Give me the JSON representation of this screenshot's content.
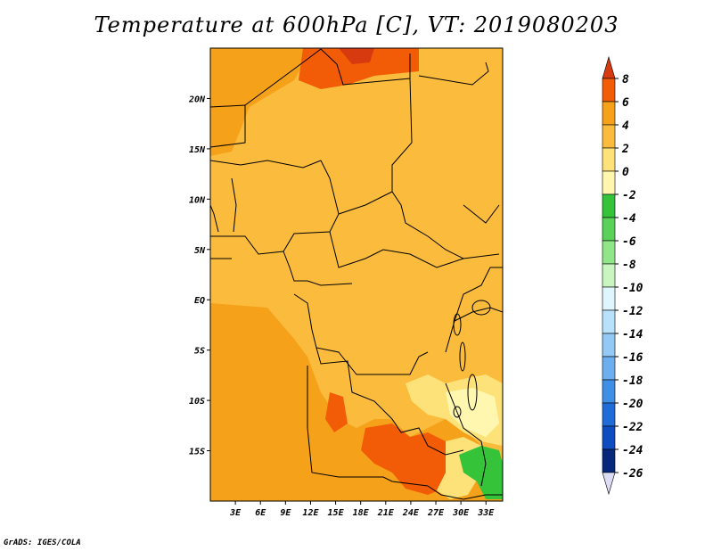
{
  "title": "Temperature at 600hPa [C], VT: 2019080203",
  "footer": "GrADS: IGES/COLA",
  "map": {
    "lon_range": [
      0,
      35
    ],
    "lat_range": [
      -20,
      25
    ],
    "lat_ticks": [
      {
        "value": 20,
        "label": "20N"
      },
      {
        "value": 15,
        "label": "15N"
      },
      {
        "value": 10,
        "label": "10N"
      },
      {
        "value": 5,
        "label": "5N"
      },
      {
        "value": 0,
        "label": "EQ"
      },
      {
        "value": -5,
        "label": "5S"
      },
      {
        "value": -10,
        "label": "10S"
      },
      {
        "value": -15,
        "label": "15S"
      }
    ],
    "lon_ticks": [
      {
        "value": 3,
        "label": "3E"
      },
      {
        "value": 6,
        "label": "6E"
      },
      {
        "value": 9,
        "label": "9E"
      },
      {
        "value": 12,
        "label": "12E"
      },
      {
        "value": 15,
        "label": "15E"
      },
      {
        "value": 18,
        "label": "18E"
      },
      {
        "value": 21,
        "label": "21E"
      },
      {
        "value": 24,
        "label": "24E"
      },
      {
        "value": 27,
        "label": "27E"
      },
      {
        "value": 30,
        "label": "30E"
      },
      {
        "value": 33,
        "label": "33E"
      }
    ]
  },
  "colorbar": {
    "labels": [
      "8",
      "6",
      "4",
      "2",
      "0",
      "-2",
      "-4",
      "-6",
      "-8",
      "-10",
      "-12",
      "-14",
      "-16",
      "-18",
      "-20",
      "-22",
      "-24",
      "-26"
    ],
    "colors_top_to_bottom": [
      "#d73a0e",
      "#f35c07",
      "#f6a11a",
      "#fbbc3d",
      "#fde27a",
      "#fff7b0",
      "#35c33a",
      "#5ad25a",
      "#92e68a",
      "#c8f5c0",
      "#dff6ff",
      "#b9e1fb",
      "#94c9f5",
      "#6caeee",
      "#3f8fe6",
      "#1f6bd8",
      "#0e4dbf",
      "#07287a",
      "#dddcf5"
    ]
  },
  "field_colors": {
    "c4_6": "#f35c07",
    "c2_4": "#f6a11a",
    "c0_2": "#fbbc3d",
    "cm2_0": "#fde27a",
    "cm4_m2": "#fff7b0",
    "cm6_m4": "#35c33a",
    "c6_8": "#d73a0e"
  }
}
